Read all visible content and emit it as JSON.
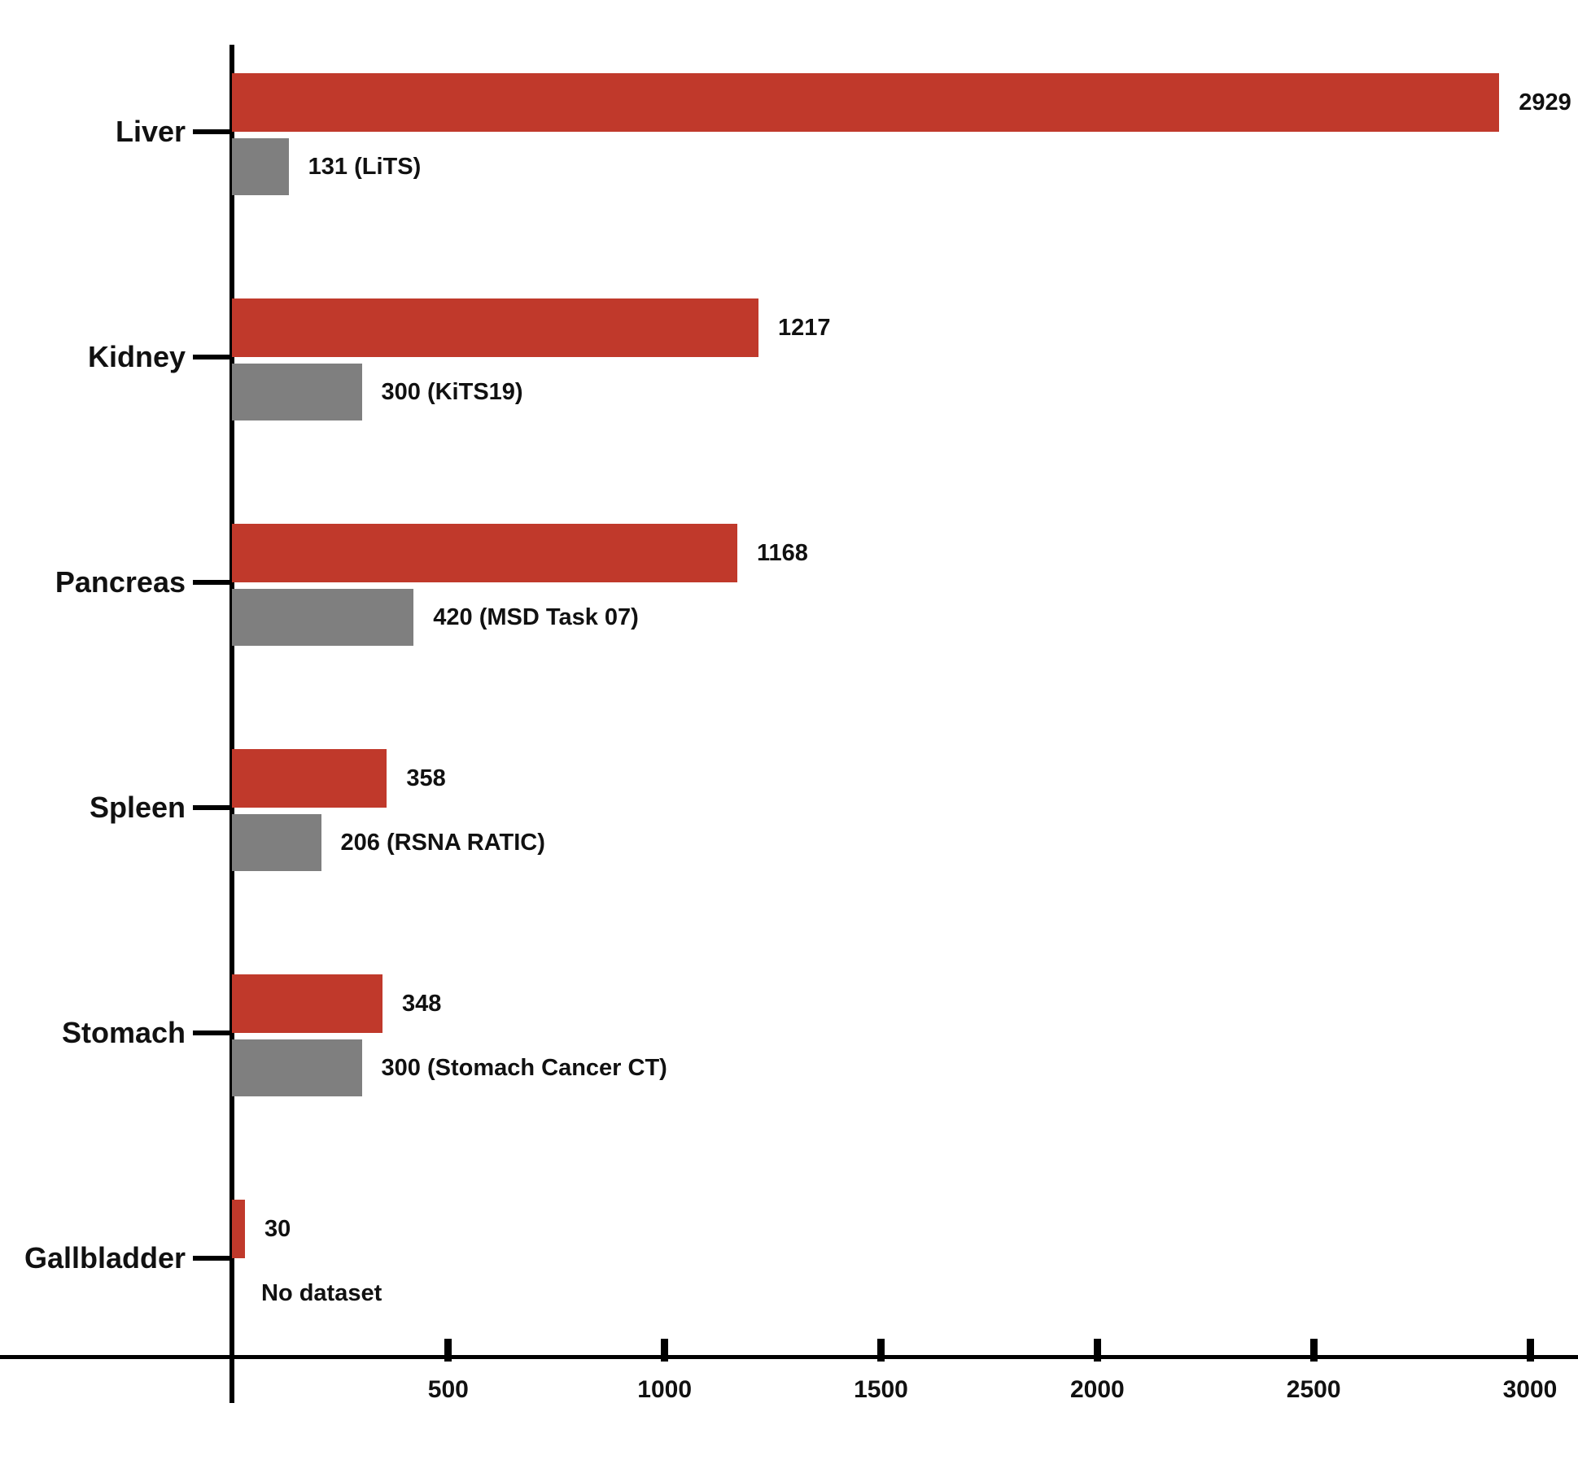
{
  "chart_data": {
    "type": "bar",
    "orientation": "horizontal",
    "title": "",
    "xlabel": "",
    "ylabel": "",
    "xlim": [
      0,
      3000
    ],
    "x_ticks": [
      500,
      1000,
      1500,
      2000,
      2500,
      3000
    ],
    "grid": false,
    "legend": null,
    "categories": [
      "Liver",
      "Kidney",
      "Pancreas",
      "Spleen",
      "Stomach",
      "Gallbladder"
    ],
    "series": [
      {
        "name": "red",
        "color": "#c0392b",
        "values": [
          2929,
          1217,
          1168,
          358,
          348,
          30
        ],
        "bar_labels": [
          "2929",
          "1217",
          "1168",
          "358",
          "348",
          "30"
        ]
      },
      {
        "name": "gray",
        "color": "#7f7f7f",
        "values": [
          131,
          300,
          420,
          206,
          300,
          0
        ],
        "bar_labels": [
          "131 (LiTS)",
          "300 (KiTS19)",
          "420 (MSD Task 07)",
          "206 (RSNA RATIC)",
          "300 (Stomach Cancer CT)",
          "No dataset"
        ]
      }
    ]
  },
  "colors": {
    "red": "#c0392b",
    "gray": "#7f7f7f",
    "axis": "#000000",
    "text": "#111111",
    "background": "#ffffff"
  }
}
